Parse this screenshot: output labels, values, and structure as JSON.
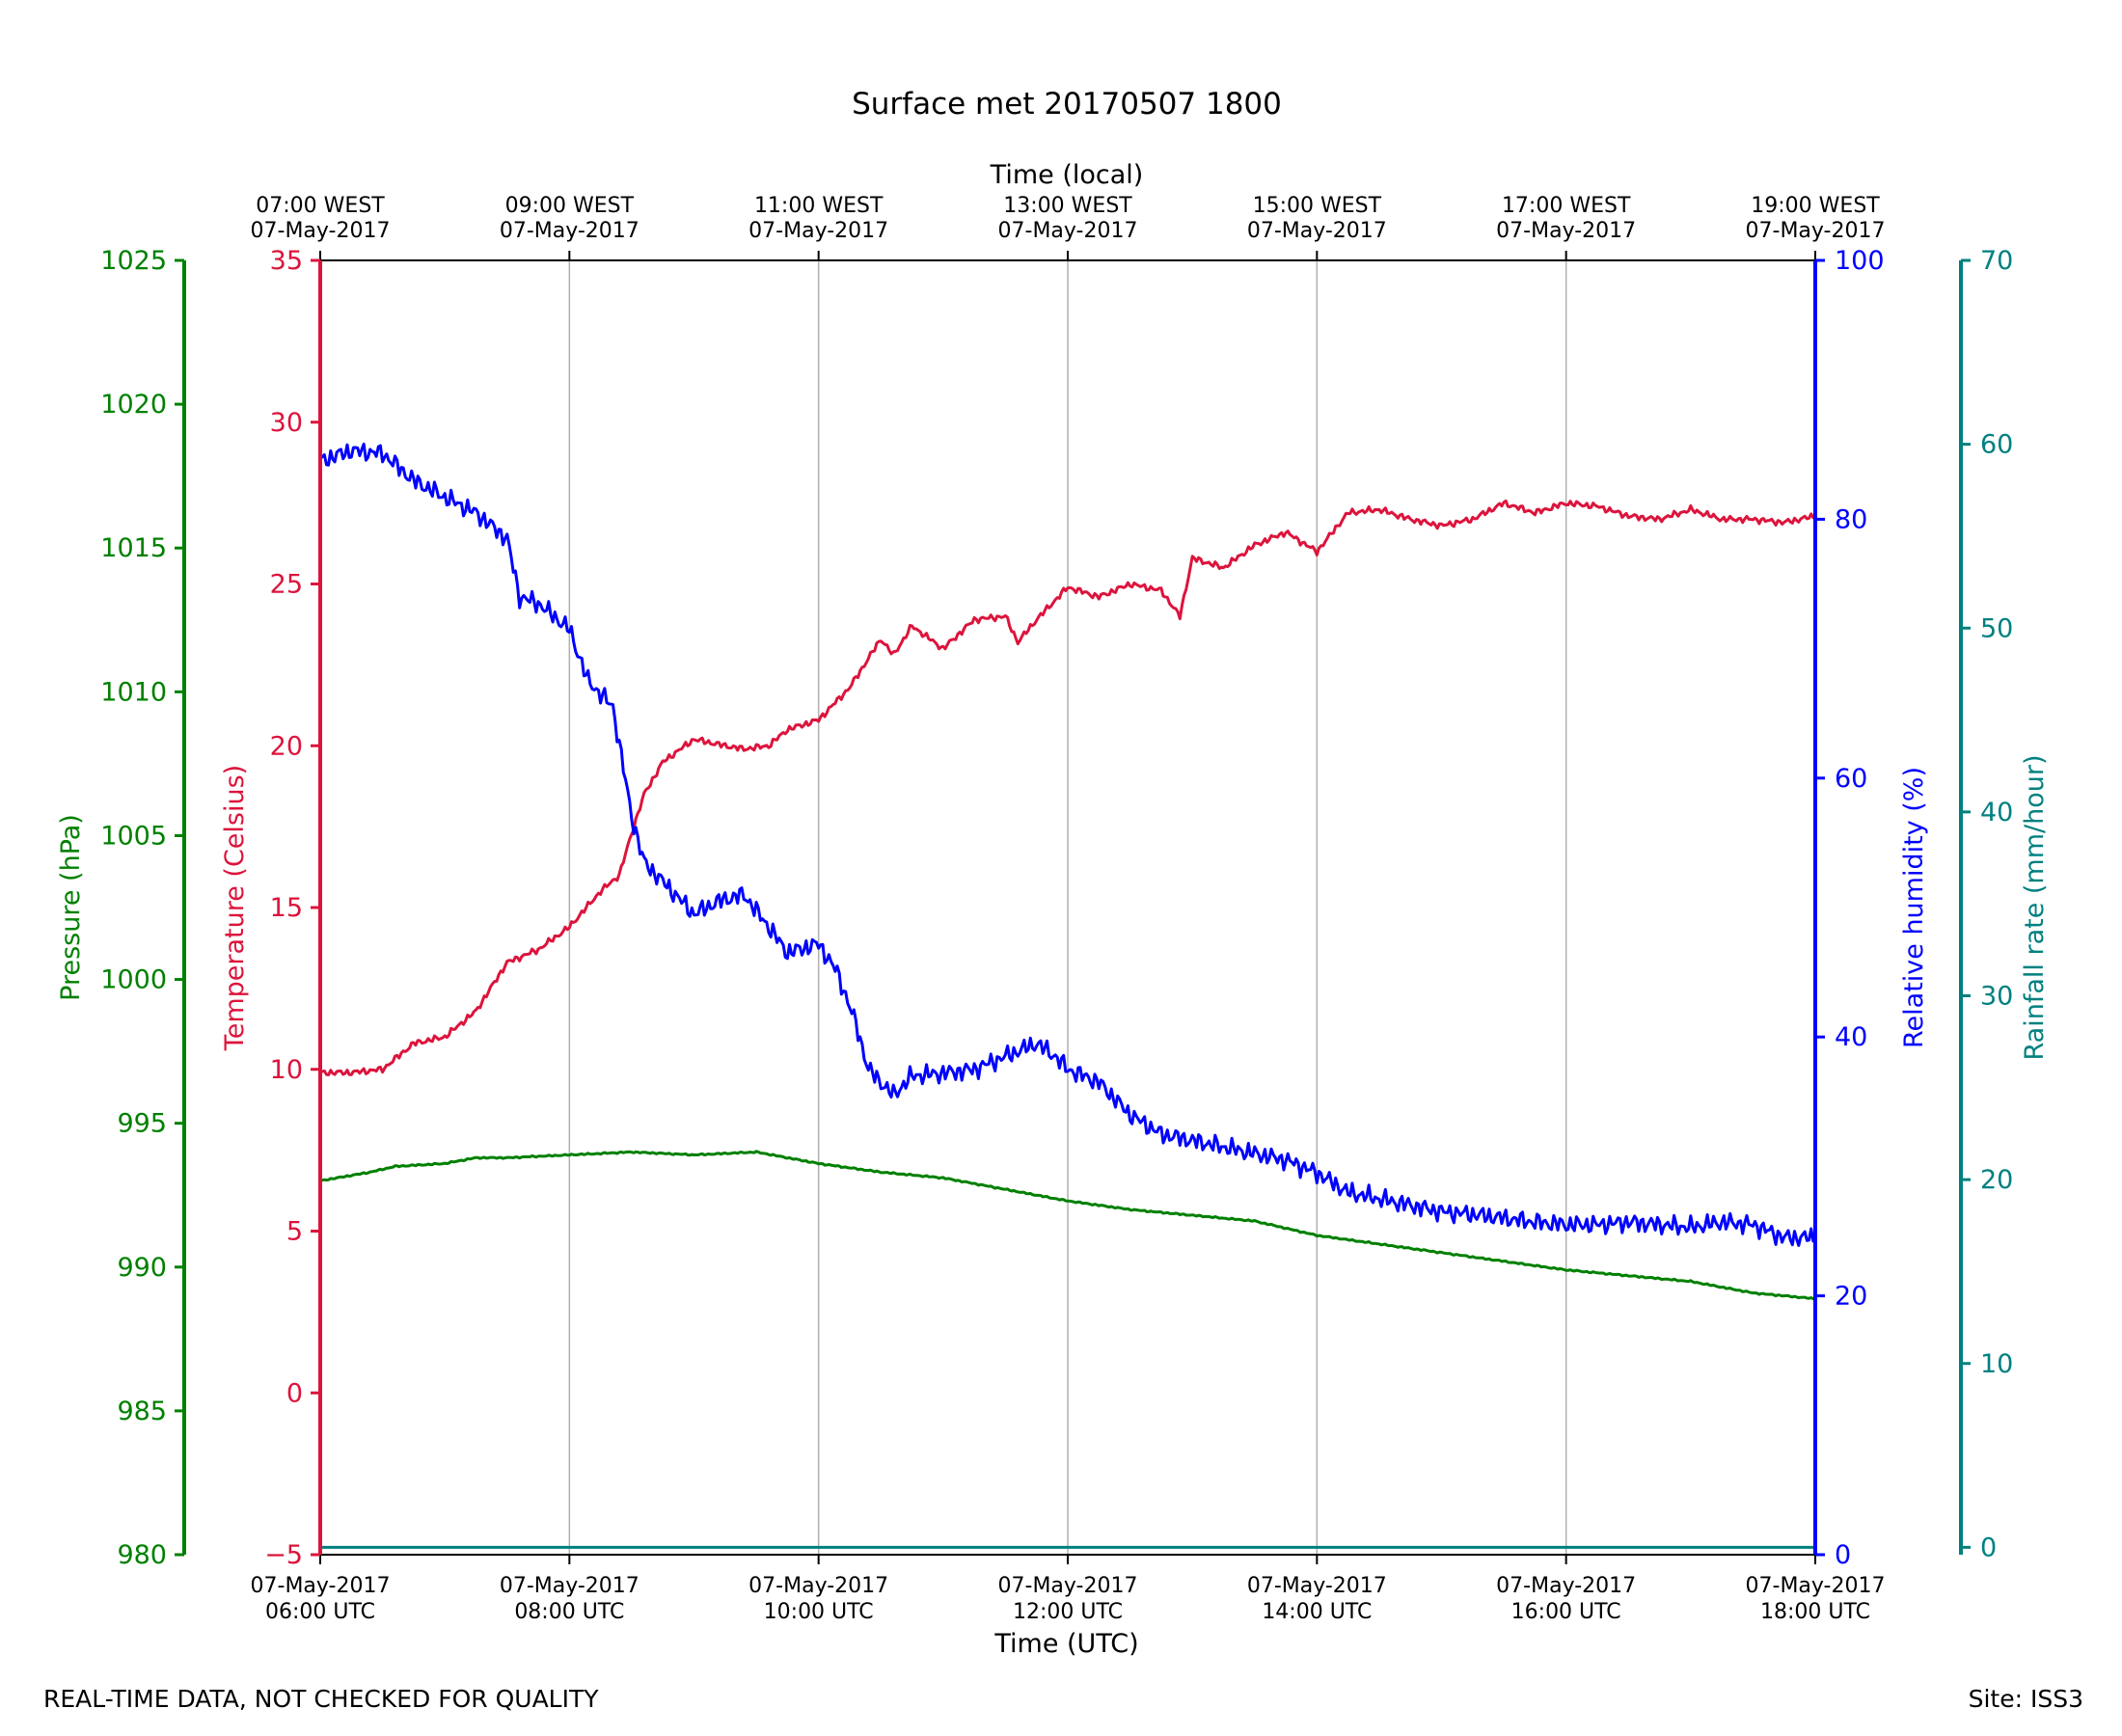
{
  "footer": {
    "disclaimer": "REAL-TIME DATA, NOT CHECKED FOR QUALITY",
    "site": "Site: ISS3"
  },
  "chart_data": {
    "type": "line",
    "title": "Surface met 20170507 1800",
    "top_xlabel": "Time (local)",
    "bottom_xlabel": "Time (UTC)",
    "x_unit": "hours UTC",
    "xlim": [
      6,
      18
    ],
    "bottom_ticks": [
      {
        "x": 6,
        "date": "07-May-2017",
        "time": "06:00 UTC"
      },
      {
        "x": 8,
        "date": "07-May-2017",
        "time": "08:00 UTC"
      },
      {
        "x": 10,
        "date": "07-May-2017",
        "time": "10:00 UTC"
      },
      {
        "x": 12,
        "date": "07-May-2017",
        "time": "12:00 UTC"
      },
      {
        "x": 14,
        "date": "07-May-2017",
        "time": "14:00 UTC"
      },
      {
        "x": 16,
        "date": "07-May-2017",
        "time": "16:00 UTC"
      },
      {
        "x": 18,
        "date": "07-May-2017",
        "time": "18:00 UTC"
      }
    ],
    "top_ticks": [
      {
        "x": 6,
        "time": "07:00 WEST",
        "date": "07-May-2017"
      },
      {
        "x": 8,
        "time": "09:00 WEST",
        "date": "07-May-2017"
      },
      {
        "x": 10,
        "time": "11:00 WEST",
        "date": "07-May-2017"
      },
      {
        "x": 12,
        "time": "13:00 WEST",
        "date": "07-May-2017"
      },
      {
        "x": 14,
        "time": "15:00 WEST",
        "date": "07-May-2017"
      },
      {
        "x": 16,
        "time": "17:00 WEST",
        "date": "07-May-2017"
      },
      {
        "x": 18,
        "time": "19:00 WEST",
        "date": "07-May-2017"
      }
    ],
    "grid": "vertical",
    "colors": {
      "temperature": "#dc143c",
      "humidity": "#0000ff",
      "pressure": "#008000",
      "rainfall": "#008080",
      "grid": "#b0b0b0",
      "frame": "#000000"
    },
    "axes": {
      "pressure": {
        "label": "Pressure (hPa)",
        "lim": [
          980,
          1025
        ],
        "ticks": [
          980,
          985,
          990,
          995,
          1000,
          1005,
          1010,
          1015,
          1020,
          1025
        ]
      },
      "temperature": {
        "label": "Temperature (Celsius)",
        "lim": [
          -5,
          35
        ],
        "ticks": [
          -5,
          0,
          5,
          10,
          15,
          20,
          25,
          30,
          35
        ]
      },
      "humidity": {
        "label": "Relative humidity (%)",
        "lim": [
          0,
          100
        ],
        "ticks": [
          0,
          20,
          40,
          60,
          80,
          100
        ]
      },
      "rainfall": {
        "label": "Rainfall rate (mm/hour)",
        "lim": [
          -0.4,
          70
        ],
        "ticks": [
          0,
          10,
          20,
          30,
          40,
          50,
          60,
          70
        ]
      }
    },
    "series": [
      {
        "name": "Temperature",
        "axis": "temperature",
        "x": [
          6.0,
          6.25,
          6.5,
          6.75,
          7.0,
          7.25,
          7.5,
          7.75,
          8.0,
          8.25,
          8.4,
          8.5,
          8.6,
          8.75,
          9.0,
          9.25,
          9.4,
          9.6,
          9.75,
          10.0,
          10.25,
          10.4,
          10.5,
          10.6,
          10.75,
          11.0,
          11.25,
          11.5,
          11.6,
          11.75,
          12.0,
          12.25,
          12.5,
          12.75,
          12.9,
          13.0,
          13.25,
          13.5,
          13.75,
          14.0,
          14.25,
          14.5,
          14.75,
          15.0,
          15.25,
          15.5,
          15.75,
          16.0,
          16.25,
          16.5,
          16.75,
          17.0,
          17.25,
          17.5,
          17.75,
          18.0
        ],
        "values": [
          9.9,
          9.9,
          10.0,
          10.8,
          11.0,
          11.8,
          13.3,
          13.7,
          14.4,
          15.5,
          16.0,
          17.3,
          18.5,
          19.5,
          20.2,
          20.0,
          19.9,
          20.0,
          20.5,
          20.8,
          21.8,
          22.7,
          23.3,
          22.8,
          23.7,
          23.0,
          23.9,
          24.0,
          23.2,
          23.9,
          24.9,
          24.6,
          25.0,
          24.8,
          24.0,
          25.8,
          25.5,
          26.2,
          26.6,
          26.0,
          27.2,
          27.3,
          27.0,
          26.8,
          27.0,
          27.5,
          27.2,
          27.5,
          27.4,
          27.1,
          27.0,
          27.3,
          27.0,
          27.0,
          26.9,
          27.1
        ]
      },
      {
        "name": "Relative humidity",
        "axis": "humidity",
        "x": [
          6.0,
          6.25,
          6.5,
          6.75,
          7.0,
          7.25,
          7.5,
          7.6,
          7.75,
          8.0,
          8.15,
          8.35,
          8.5,
          8.6,
          8.75,
          9.0,
          9.2,
          9.4,
          9.6,
          9.75,
          10.0,
          10.15,
          10.3,
          10.4,
          10.5,
          10.6,
          10.75,
          11.0,
          11.25,
          11.5,
          11.75,
          11.9,
          12.0,
          12.25,
          12.5,
          12.75,
          13.0,
          13.25,
          13.5,
          13.75,
          14.0,
          14.25,
          14.5,
          14.75,
          15.0,
          15.25,
          15.5,
          15.75,
          16.0,
          16.25,
          16.5,
          16.75,
          17.0,
          17.25,
          17.5,
          17.75,
          18.0
        ],
        "values": [
          84.5,
          85.3,
          85.1,
          83.0,
          81.7,
          80.5,
          78.5,
          74.0,
          73.5,
          71.5,
          67.5,
          65.5,
          57.0,
          53.5,
          52.0,
          49.5,
          50.5,
          51.0,
          48.5,
          46.5,
          47.2,
          45.0,
          41.0,
          37.5,
          36.5,
          35.5,
          37.0,
          37.2,
          37.5,
          38.5,
          39.5,
          38.5,
          37.5,
          36.5,
          34.0,
          32.5,
          32.0,
          31.5,
          31.0,
          30.5,
          29.5,
          28.0,
          27.5,
          27.0,
          26.5,
          26.3,
          26.0,
          25.7,
          25.5,
          25.5,
          25.7,
          25.5,
          25.3,
          25.7,
          25.5,
          24.5,
          24.5
        ]
      },
      {
        "name": "Pressure",
        "axis": "pressure",
        "x": [
          6.0,
          6.4,
          6.6,
          7.0,
          7.25,
          7.5,
          8.0,
          8.5,
          9.0,
          9.5,
          10.0,
          10.5,
          11.0,
          11.5,
          12.0,
          12.5,
          13.0,
          13.5,
          14.0,
          14.5,
          15.0,
          15.5,
          16.0,
          16.5,
          17.0,
          17.5,
          18.0
        ],
        "values": [
          993.0,
          993.3,
          993.5,
          993.6,
          993.8,
          993.8,
          993.9,
          994.0,
          993.9,
          994.0,
          993.6,
          993.3,
          993.1,
          992.7,
          992.3,
          992.0,
          991.8,
          991.6,
          991.1,
          990.8,
          990.5,
          990.2,
          989.9,
          989.7,
          989.5,
          989.1,
          988.9
        ]
      },
      {
        "name": "Rainfall rate",
        "axis": "rainfall",
        "x": [
          6.0,
          18.0
        ],
        "values": [
          0,
          0
        ]
      }
    ]
  }
}
